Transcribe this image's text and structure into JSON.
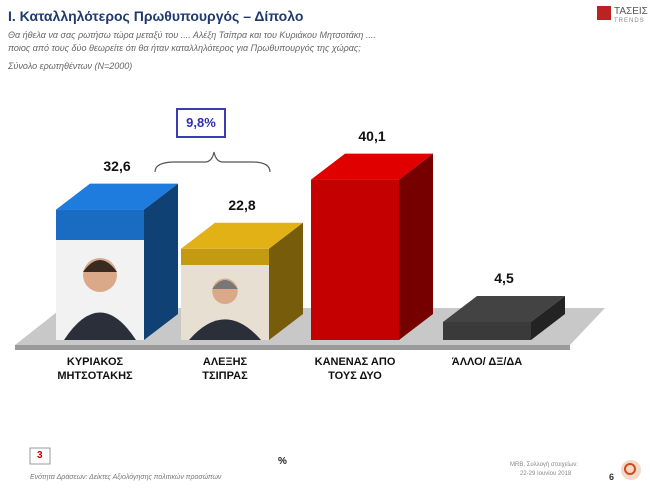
{
  "chart_data": {
    "type": "bar3d",
    "title": "Ι. Καταλληλότερος Πρωθυπουργός – Δίπολο",
    "subtitle": [
      "Θα ήθελα να σας ρωτήσω τώρα μεταξύ του .... Αλέξη Τσίπρα και του Κυριάκου Μητσοτάκη ....",
      "ποιος από τους δύο θεωρείτε ότι θα ήταν καταλληλότερος για Πρωθυπουργός της χώρας;"
    ],
    "base": "Σύνολο ερωτηθέντων (N=2000)",
    "categories": [
      "ΚΥΡΙΑΚΟΣ ΜΗΤΣΟΤΑΚΗΣ",
      "ΑΛΕΞΗΣ ΤΣΙΠΡΑΣ",
      "ΚΑΝΕΝΑΣ ΑΠΟ ΤΟΥΣ ΔΥΟ",
      "ΆΛΛΟ/ ΔΞ/ΔΑ"
    ],
    "values": [
      32.6,
      22.8,
      40.1,
      4.5
    ],
    "value_labels": [
      "32,6",
      "22,8",
      "40,1",
      "4,5"
    ],
    "colors": [
      "#1a6cc2",
      "#c49a12",
      "#c40000",
      "#3a3a3a"
    ],
    "annotation": "9,8%",
    "unit": "%",
    "logo": [
      "ΤΑΣΕΙΣ",
      "TRENDS"
    ],
    "footer": {
      "slide_section": "3",
      "section_text": "Ενότητα Δράσεων: Δείκτες Αξιολόγησης πολιτικών προσώπων",
      "source": [
        "MRB, Συλλογή στοιχείων:",
        "22-29 Ιουνίου 2018"
      ],
      "page": "6"
    }
  }
}
